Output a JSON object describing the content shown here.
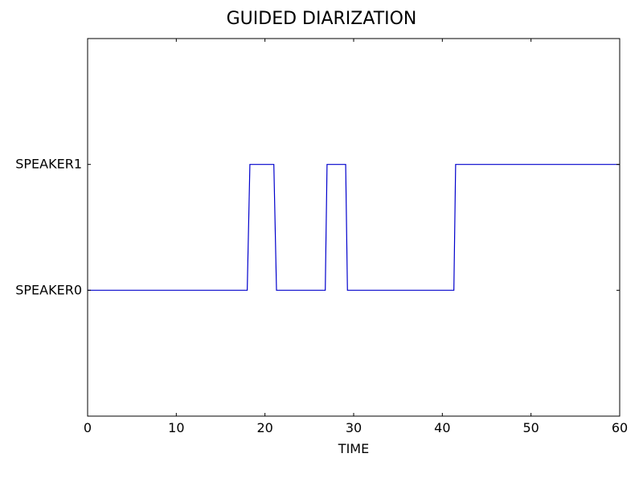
{
  "chart_data": {
    "type": "line",
    "title": "GUIDED DIARIZATION",
    "xlabel": "TIME",
    "ylabel": "",
    "xlim": [
      0,
      60
    ],
    "ylim": [
      -1,
      2
    ],
    "xticks": [
      0,
      10,
      20,
      30,
      40,
      50,
      60
    ],
    "yticks": [
      {
        "value": 0,
        "label": "SPEAKER0"
      },
      {
        "value": 1,
        "label": "SPEAKER1"
      }
    ],
    "grid": false,
    "series": [
      {
        "color": "#0000cc",
        "points": [
          [
            0,
            0
          ],
          [
            18.0,
            0
          ],
          [
            18.3,
            1
          ],
          [
            21.0,
            1
          ],
          [
            21.3,
            0
          ],
          [
            26.8,
            0
          ],
          [
            27.0,
            1
          ],
          [
            29.1,
            1
          ],
          [
            29.3,
            0
          ],
          [
            41.3,
            0
          ],
          [
            41.5,
            1
          ],
          [
            60,
            1
          ]
        ]
      }
    ]
  }
}
